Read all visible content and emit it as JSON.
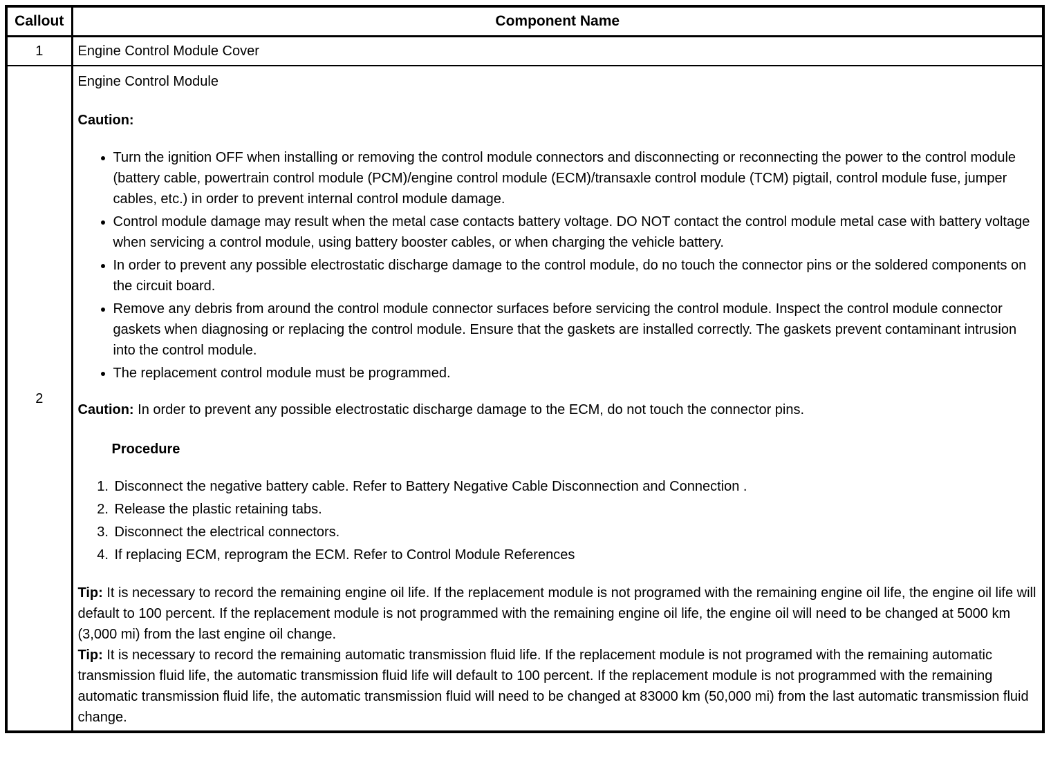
{
  "table": {
    "headers": [
      "Callout",
      "Component Name"
    ],
    "rows": [
      {
        "callout": "1",
        "component": "Engine Control Module Cover"
      },
      {
        "callout": "2",
        "details": {
          "title": "Engine Control Module",
          "caution_heading": "Caution:",
          "bullets": [
            "Turn the ignition OFF when installing or removing the control module connectors and disconnecting or reconnecting the power to the control module (battery cable, powertrain control module (PCM)/engine control module (ECM)/transaxle control module (TCM) pigtail, control module fuse, jumper cables, etc.) in order to prevent internal control module damage.",
            "Control module damage may result when the metal case contacts battery voltage. DO NOT contact the control module metal case with battery voltage when servicing a control module, using battery booster cables, or when charging the vehicle battery.",
            "In order to prevent any possible electrostatic discharge damage to the control module, do no touch the connector pins or the soldered components on the circuit board.",
            "Remove any debris from around the control module connector surfaces before servicing the control module. Inspect the control module connector gaskets when diagnosing or replacing the control module. Ensure that the gaskets are installed correctly. The gaskets prevent contaminant intrusion into the control module.",
            "The replacement control module must be programmed."
          ],
          "caution_note": {
            "label": "Caution:",
            "text": "In order to prevent any possible electrostatic discharge damage to the ECM, do not touch the connector pins."
          },
          "procedure_heading": "Procedure",
          "steps": [
            "Disconnect the negative battery cable. Refer to Battery Negative Cable Disconnection and Connection .",
            "Release the plastic retaining tabs.",
            "Disconnect the electrical connectors.",
            "If replacing ECM, reprogram the ECM. Refer to Control Module References"
          ],
          "tips": [
            {
              "label": "Tip:",
              "text": "It is necessary to record the remaining engine oil life. If the replacement module is not programed with the remaining engine oil life, the engine oil life will default to 100 percent. If the replacement module is not programmed with the remaining engine oil life, the engine oil will need to be changed at 5000 km (3,000 mi) from the last engine oil change."
            },
            {
              "label": "Tip:",
              "text": "It is necessary to record the remaining automatic transmission fluid life. If the replacement module is not programed with the remaining automatic transmission fluid life, the automatic transmission fluid life will default to 100 percent. If the replacement module is not programmed with the remaining automatic transmission fluid life, the automatic transmission fluid will need to be changed at 83000 km (50,000 mi) from the last automatic transmission fluid change."
            }
          ]
        }
      }
    ]
  }
}
